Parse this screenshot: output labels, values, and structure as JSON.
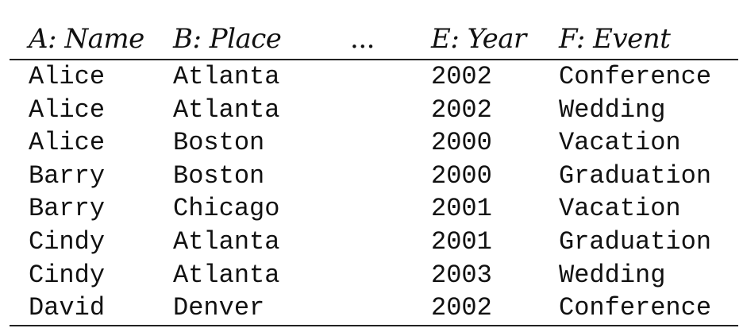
{
  "table": {
    "headers": {
      "name": "A: Name",
      "place": "B: Place",
      "ellipsis": "...",
      "year": "E: Year",
      "event": "F: Event"
    },
    "rows": [
      {
        "name": "Alice",
        "place": "Atlanta",
        "year": "2002",
        "event": "Conference"
      },
      {
        "name": "Alice",
        "place": "Atlanta",
        "year": "2002",
        "event": "Wedding"
      },
      {
        "name": "Alice",
        "place": "Boston",
        "year": "2000",
        "event": "Vacation"
      },
      {
        "name": "Barry",
        "place": "Boston",
        "year": "2000",
        "event": "Graduation"
      },
      {
        "name": "Barry",
        "place": "Chicago",
        "year": "2001",
        "event": "Vacation"
      },
      {
        "name": "Cindy",
        "place": "Atlanta",
        "year": "2001",
        "event": "Graduation"
      },
      {
        "name": "Cindy",
        "place": "Atlanta",
        "year": "2003",
        "event": "Wedding"
      },
      {
        "name": "David",
        "place": "Denver",
        "year": "2002",
        "event": "Conference"
      }
    ]
  }
}
